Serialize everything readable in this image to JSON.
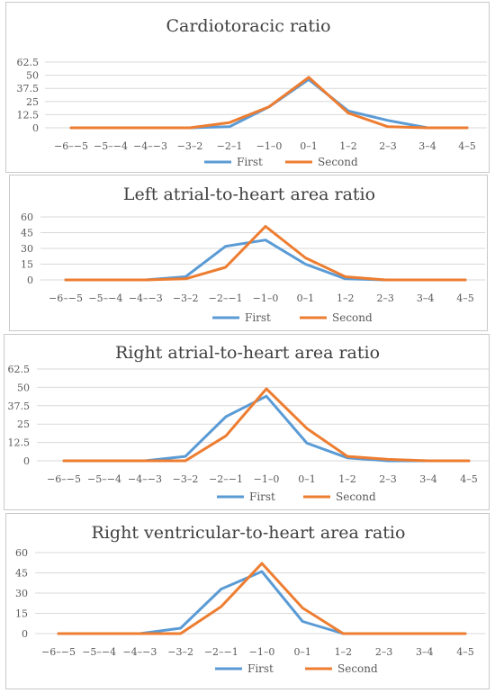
{
  "colors": {
    "first": "#5B9BD5",
    "second": "#ED7D31",
    "grid": "#D9D9D9",
    "text": "#595959"
  },
  "chart_data": [
    {
      "type": "line",
      "title": "Cardiotoracic ratio",
      "categories": [
        "−6–−5",
        "−5–−4",
        "−4–−3",
        "−3–2",
        "−2–1",
        "−1–0",
        "0–1",
        "1–2",
        "2–3",
        "3–4",
        "4–5"
      ],
      "yticks": [
        "0",
        "12.5",
        "25",
        "37.5",
        "50",
        "62.5"
      ],
      "ylim": [
        0,
        62.5
      ],
      "grid": true,
      "legend": "bottom",
      "series": [
        {
          "name": "First",
          "values": [
            0,
            0,
            0,
            0,
            1,
            20,
            46,
            16,
            7,
            0,
            0
          ]
        },
        {
          "name": "Second",
          "values": [
            0,
            0,
            0,
            0,
            5,
            20,
            48,
            14,
            1,
            0,
            0
          ]
        }
      ]
    },
    {
      "type": "line",
      "title": "Left atrial-to-heart area ratio",
      "categories": [
        "−6–−5",
        "−5–−4",
        "−4–−3",
        "−3–2",
        "−2–−1",
        "−1–0",
        "0–1",
        "1–2",
        "2–3",
        "3–4",
        "4–5"
      ],
      "yticks": [
        "0",
        "15",
        "30",
        "45",
        "60"
      ],
      "ylim": [
        0,
        60
      ],
      "grid": true,
      "legend": "bottom",
      "series": [
        {
          "name": "First",
          "values": [
            0,
            0,
            0,
            3,
            32,
            38,
            15,
            1,
            0,
            0,
            0
          ]
        },
        {
          "name": "Second",
          "values": [
            0,
            0,
            0,
            1,
            12,
            51,
            21,
            3,
            0,
            0,
            0
          ]
        }
      ]
    },
    {
      "type": "line",
      "title": "Right atrial-to-heart area ratio",
      "categories": [
        "−6–−5",
        "−5–−4",
        "−4–−3",
        "−3–2",
        "−2–−1",
        "−1–0",
        "0–1",
        "1–2",
        "2–3",
        "3–4",
        "4–5"
      ],
      "yticks": [
        "0",
        "12.5",
        "25",
        "37.5",
        "50",
        "62.5"
      ],
      "ylim": [
        0,
        62.5
      ],
      "grid": true,
      "legend": "bottom",
      "series": [
        {
          "name": "First",
          "values": [
            0,
            0,
            0,
            3,
            30,
            44,
            12,
            2,
            0,
            0,
            0
          ]
        },
        {
          "name": "Second",
          "values": [
            0,
            0,
            0,
            0,
            17,
            49,
            22,
            3,
            1,
            0,
            0
          ]
        }
      ]
    },
    {
      "type": "line",
      "title": "Right ventricular-to-heart area ratio",
      "categories": [
        "−6–−5",
        "−5–−4",
        "−4–−3",
        "−3–2",
        "−2–−1",
        "−1–0",
        "0–1",
        "1–2",
        "2–3",
        "3–4",
        "4–5"
      ],
      "yticks": [
        "0",
        "15",
        "30",
        "45",
        "60"
      ],
      "ylim": [
        0,
        60
      ],
      "grid": true,
      "legend": "bottom",
      "series": [
        {
          "name": "First",
          "values": [
            0,
            0,
            0,
            4,
            33,
            46,
            9,
            0,
            0,
            0,
            0
          ]
        },
        {
          "name": "Second",
          "values": [
            0,
            0,
            0,
            0,
            20,
            52,
            19,
            0,
            0,
            0,
            0
          ]
        }
      ]
    }
  ]
}
